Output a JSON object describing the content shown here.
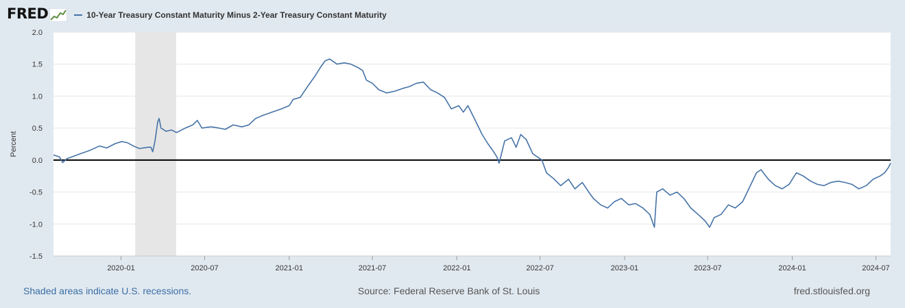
{
  "header": {
    "logo": "FRED",
    "legend_label": "10-Year Treasury Constant Maturity Minus 2-Year Treasury Constant Maturity",
    "series_color": "#4572a7"
  },
  "footer": {
    "recession_note": "Shaded areas indicate U.S. recessions.",
    "source": "Source: Federal Reserve Bank of St. Louis",
    "site": "fred.stlouisfed.org"
  },
  "chart_data": {
    "type": "line",
    "title": "",
    "xlabel": "",
    "ylabel": "Percent",
    "ylim": [
      -1.5,
      2.0
    ],
    "yticks": [
      {
        "value": 2.0,
        "label": "2.0"
      },
      {
        "value": 1.5,
        "label": "1.5"
      },
      {
        "value": 1.0,
        "label": "1.0"
      },
      {
        "value": 0.5,
        "label": "0.5"
      },
      {
        "value": 0.0,
        "label": "0.0"
      },
      {
        "value": -0.5,
        "label": "-0.5"
      },
      {
        "value": -1.0,
        "label": "-1.0"
      },
      {
        "value": -1.5,
        "label": "-1.5"
      }
    ],
    "xlim": [
      "2019-08-07",
      "2024-08-02"
    ],
    "xticks": [
      "2020-01",
      "2020-07",
      "2021-01",
      "2021-07",
      "2022-01",
      "2022-07",
      "2023-01",
      "2023-07",
      "2024-01",
      "2024-07"
    ],
    "grid": true,
    "zero_line": 0.0,
    "recession_bands": [
      {
        "start": "2020-02-01",
        "end": "2020-04-30"
      }
    ],
    "series": [
      {
        "name": "10-Year Treasury Constant Maturity Minus 2-Year Treasury Constant Maturity",
        "points": [
          [
            "2019-08-07",
            0.08
          ],
          [
            "2019-08-20",
            0.05
          ],
          [
            "2019-08-27",
            -0.04
          ],
          [
            "2019-09-05",
            0.02
          ],
          [
            "2019-09-20",
            0.06
          ],
          [
            "2019-10-05",
            0.1
          ],
          [
            "2019-10-25",
            0.15
          ],
          [
            "2019-11-15",
            0.22
          ],
          [
            "2019-12-01",
            0.19
          ],
          [
            "2019-12-20",
            0.26
          ],
          [
            "2020-01-03",
            0.29
          ],
          [
            "2020-01-15",
            0.27
          ],
          [
            "2020-01-28",
            0.22
          ],
          [
            "2020-02-10",
            0.18
          ],
          [
            "2020-02-28",
            0.2
          ],
          [
            "2020-03-06",
            0.2
          ],
          [
            "2020-03-10",
            0.13
          ],
          [
            "2020-03-15",
            0.3
          ],
          [
            "2020-03-18",
            0.45
          ],
          [
            "2020-03-21",
            0.6
          ],
          [
            "2020-03-24",
            0.65
          ],
          [
            "2020-03-28",
            0.5
          ],
          [
            "2020-04-08",
            0.45
          ],
          [
            "2020-04-20",
            0.47
          ],
          [
            "2020-05-01",
            0.43
          ],
          [
            "2020-05-20",
            0.5
          ],
          [
            "2020-06-05",
            0.55
          ],
          [
            "2020-06-15",
            0.62
          ],
          [
            "2020-06-25",
            0.5
          ],
          [
            "2020-07-15",
            0.52
          ],
          [
            "2020-08-01",
            0.5
          ],
          [
            "2020-08-15",
            0.48
          ],
          [
            "2020-09-01",
            0.55
          ],
          [
            "2020-09-20",
            0.52
          ],
          [
            "2020-10-05",
            0.55
          ],
          [
            "2020-10-20",
            0.65
          ],
          [
            "2020-11-05",
            0.7
          ],
          [
            "2020-11-25",
            0.75
          ],
          [
            "2020-12-15",
            0.8
          ],
          [
            "2021-01-01",
            0.85
          ],
          [
            "2021-01-10",
            0.95
          ],
          [
            "2021-01-25",
            0.98
          ],
          [
            "2021-02-10",
            1.15
          ],
          [
            "2021-02-25",
            1.3
          ],
          [
            "2021-03-10",
            1.45
          ],
          [
            "2021-03-20",
            1.55
          ],
          [
            "2021-03-30",
            1.58
          ],
          [
            "2021-04-15",
            1.5
          ],
          [
            "2021-05-01",
            1.52
          ],
          [
            "2021-05-15",
            1.5
          ],
          [
            "2021-05-30",
            1.45
          ],
          [
            "2021-06-10",
            1.4
          ],
          [
            "2021-06-18",
            1.25
          ],
          [
            "2021-07-01",
            1.2
          ],
          [
            "2021-07-15",
            1.1
          ],
          [
            "2021-08-01",
            1.05
          ],
          [
            "2021-08-20",
            1.08
          ],
          [
            "2021-09-05",
            1.12
          ],
          [
            "2021-09-20",
            1.15
          ],
          [
            "2021-10-05",
            1.2
          ],
          [
            "2021-10-20",
            1.22
          ],
          [
            "2021-11-05",
            1.1
          ],
          [
            "2021-11-20",
            1.05
          ],
          [
            "2021-12-05",
            0.98
          ],
          [
            "2021-12-20",
            0.8
          ],
          [
            "2022-01-05",
            0.85
          ],
          [
            "2022-01-15",
            0.75
          ],
          [
            "2022-01-25",
            0.85
          ],
          [
            "2022-02-10",
            0.62
          ],
          [
            "2022-02-25",
            0.4
          ],
          [
            "2022-03-10",
            0.25
          ],
          [
            "2022-03-20",
            0.15
          ],
          [
            "2022-03-29",
            0.05
          ],
          [
            "2022-04-03",
            -0.05
          ],
          [
            "2022-04-15",
            0.3
          ],
          [
            "2022-04-30",
            0.35
          ],
          [
            "2022-05-10",
            0.2
          ],
          [
            "2022-05-20",
            0.4
          ],
          [
            "2022-06-01",
            0.32
          ],
          [
            "2022-06-15",
            0.1
          ],
          [
            "2022-06-25",
            0.05
          ],
          [
            "2022-07-05",
            0.0
          ],
          [
            "2022-07-15",
            -0.2
          ],
          [
            "2022-08-01",
            -0.3
          ],
          [
            "2022-08-15",
            -0.4
          ],
          [
            "2022-09-01",
            -0.3
          ],
          [
            "2022-09-15",
            -0.45
          ],
          [
            "2022-10-01",
            -0.35
          ],
          [
            "2022-10-15",
            -0.5
          ],
          [
            "2022-10-25",
            -0.6
          ],
          [
            "2022-11-10",
            -0.7
          ],
          [
            "2022-11-25",
            -0.75
          ],
          [
            "2022-12-10",
            -0.65
          ],
          [
            "2022-12-25",
            -0.6
          ],
          [
            "2023-01-10",
            -0.7
          ],
          [
            "2023-01-25",
            -0.68
          ],
          [
            "2023-02-10",
            -0.75
          ],
          [
            "2023-02-25",
            -0.85
          ],
          [
            "2023-03-07",
            -1.05
          ],
          [
            "2023-03-12",
            -0.5
          ],
          [
            "2023-03-25",
            -0.45
          ],
          [
            "2023-04-10",
            -0.55
          ],
          [
            "2023-04-25",
            -0.5
          ],
          [
            "2023-05-10",
            -0.6
          ],
          [
            "2023-05-25",
            -0.75
          ],
          [
            "2023-06-10",
            -0.85
          ],
          [
            "2023-06-25",
            -0.95
          ],
          [
            "2023-07-05",
            -1.05
          ],
          [
            "2023-07-15",
            -0.9
          ],
          [
            "2023-07-30",
            -0.85
          ],
          [
            "2023-08-15",
            -0.7
          ],
          [
            "2023-08-30",
            -0.75
          ],
          [
            "2023-09-15",
            -0.65
          ],
          [
            "2023-09-25",
            -0.5
          ],
          [
            "2023-10-05",
            -0.35
          ],
          [
            "2023-10-15",
            -0.2
          ],
          [
            "2023-10-25",
            -0.15
          ],
          [
            "2023-11-10",
            -0.3
          ],
          [
            "2023-11-25",
            -0.4
          ],
          [
            "2023-12-10",
            -0.45
          ],
          [
            "2023-12-25",
            -0.38
          ],
          [
            "2024-01-10",
            -0.2
          ],
          [
            "2024-01-25",
            -0.25
          ],
          [
            "2024-02-10",
            -0.33
          ],
          [
            "2024-02-25",
            -0.38
          ],
          [
            "2024-03-10",
            -0.4
          ],
          [
            "2024-03-25",
            -0.35
          ],
          [
            "2024-04-10",
            -0.33
          ],
          [
            "2024-04-25",
            -0.35
          ],
          [
            "2024-05-10",
            -0.38
          ],
          [
            "2024-05-25",
            -0.45
          ],
          [
            "2024-06-10",
            -0.4
          ],
          [
            "2024-06-25",
            -0.3
          ],
          [
            "2024-07-10",
            -0.25
          ],
          [
            "2024-07-20",
            -0.2
          ],
          [
            "2024-07-28",
            -0.12
          ],
          [
            "2024-08-02",
            -0.05
          ]
        ]
      }
    ]
  }
}
